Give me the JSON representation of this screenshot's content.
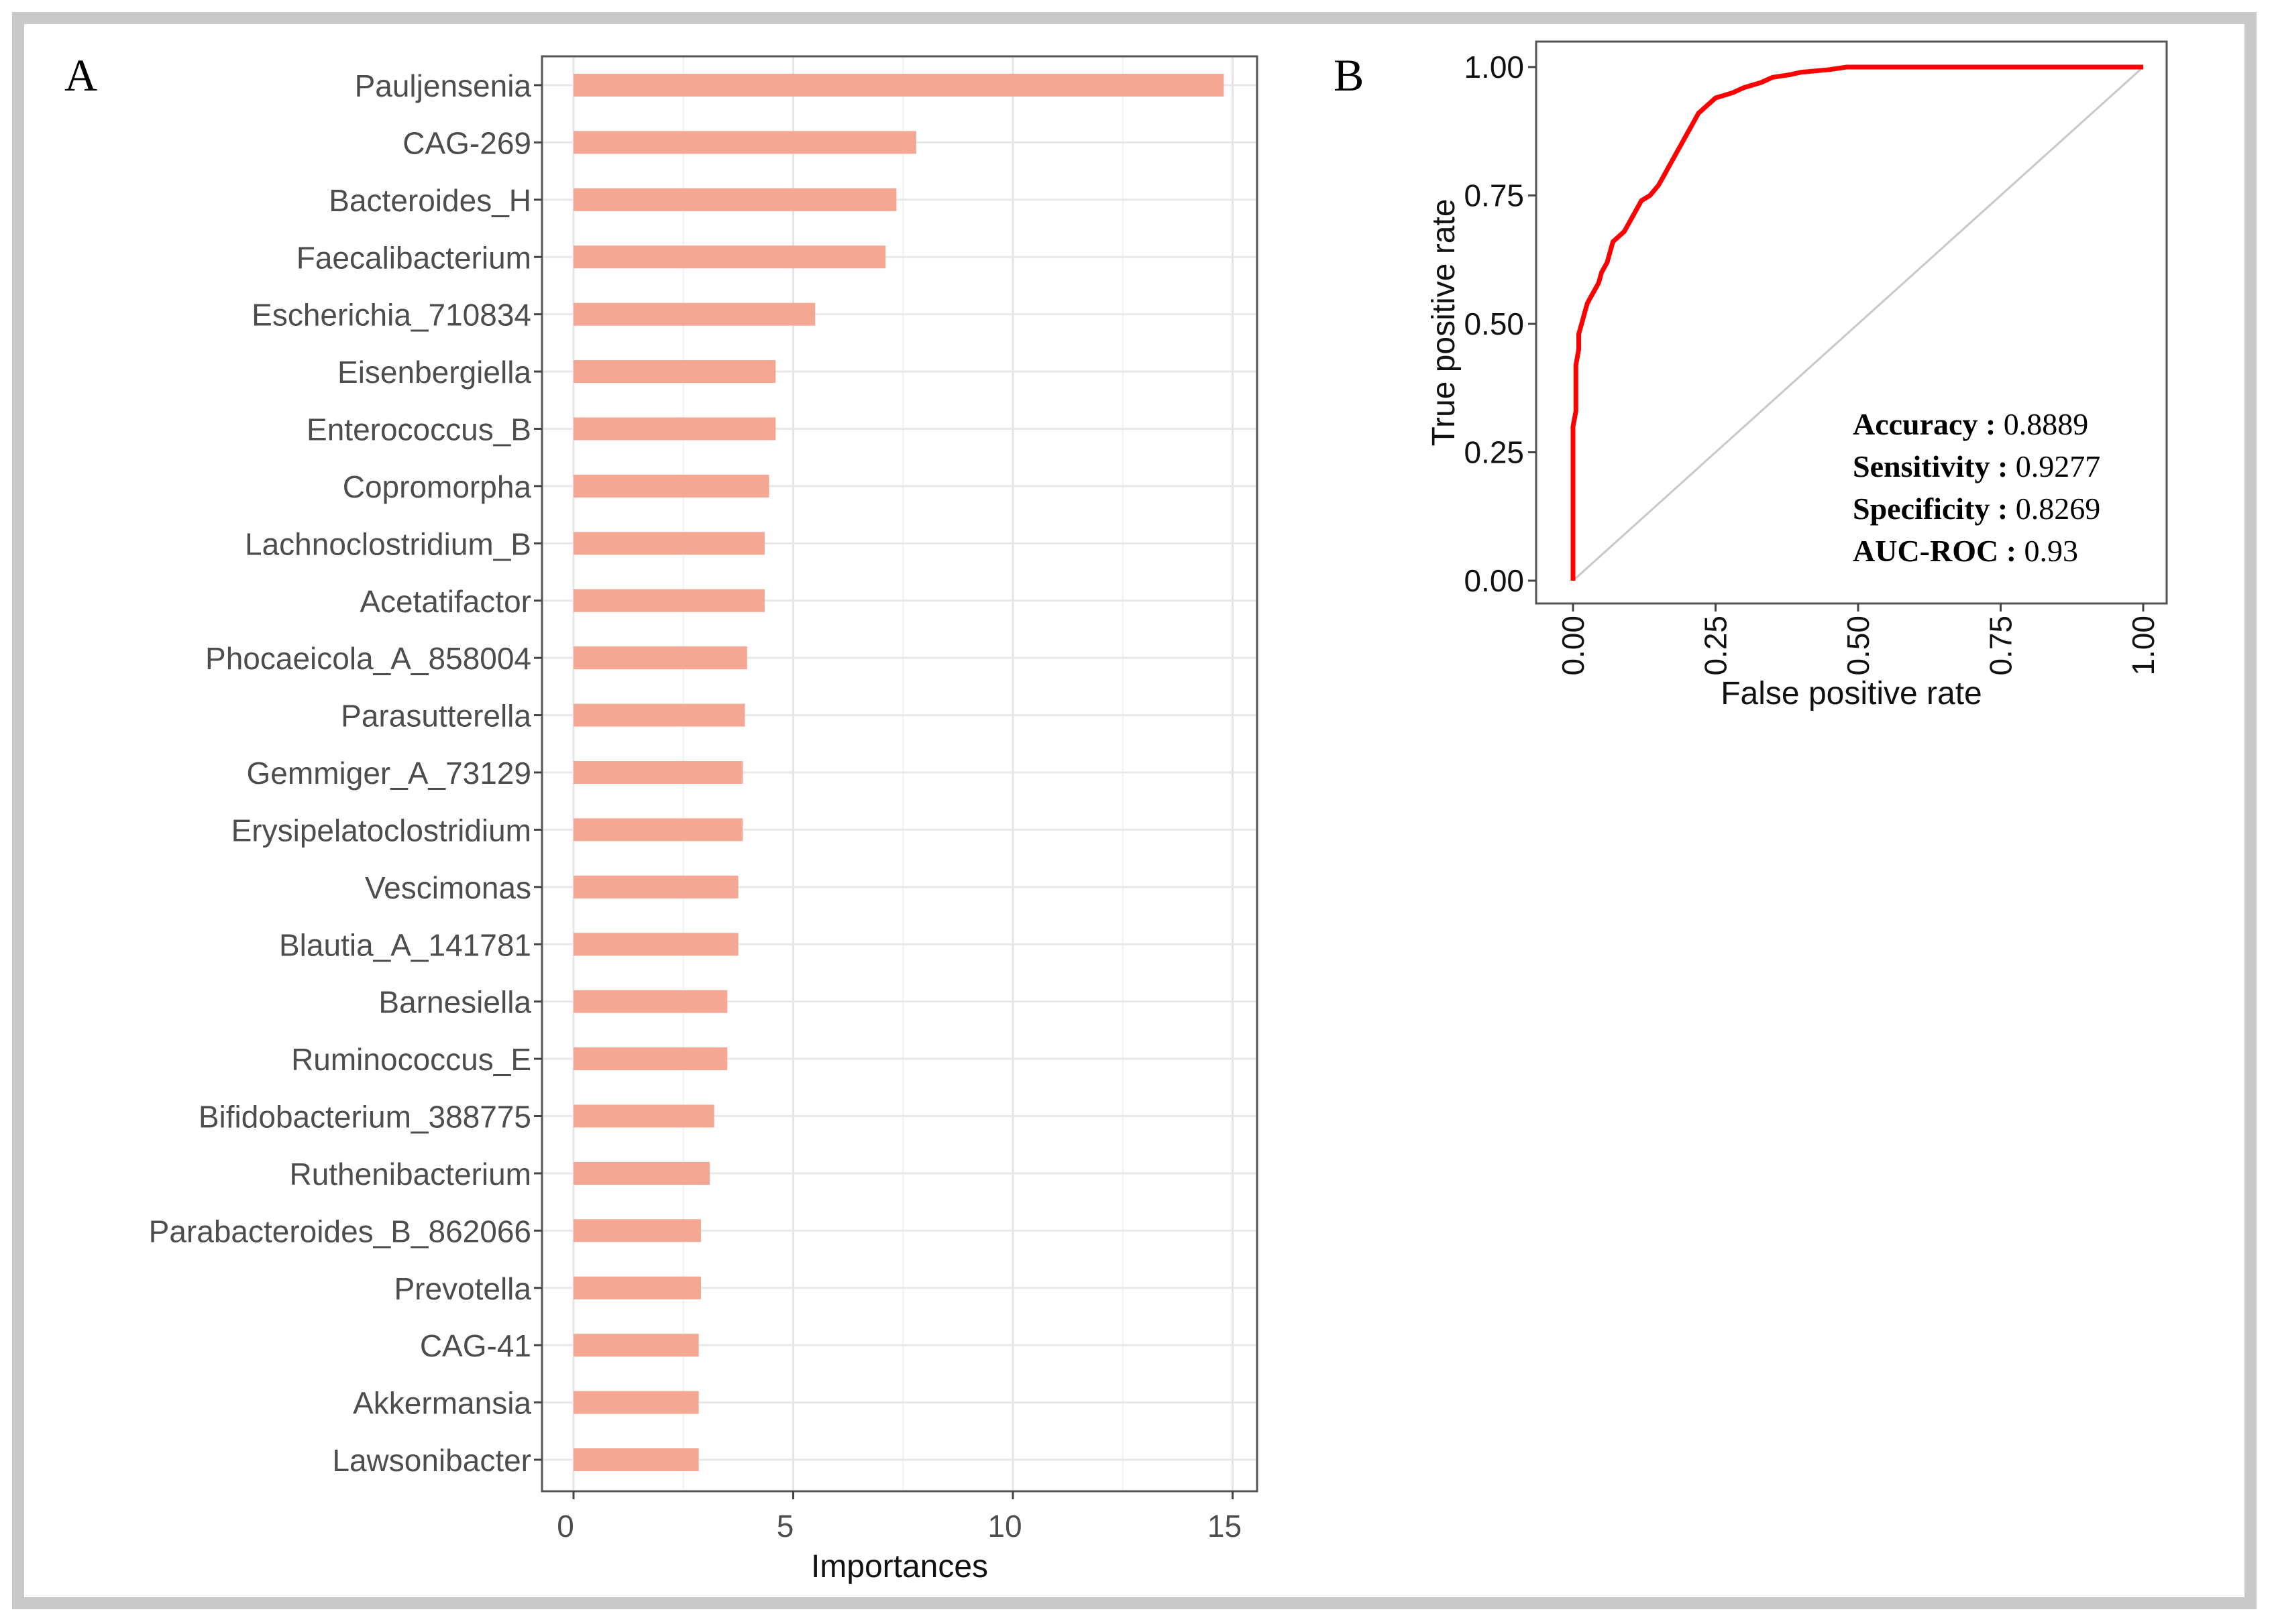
{
  "figure": {
    "panel_a_label": "A",
    "panel_b_label": "B"
  },
  "chart_data": [
    {
      "type": "bar",
      "orientation": "horizontal",
      "title": "",
      "xlabel": "Importances",
      "ylabel": "",
      "xlim": [
        0,
        15.5
      ],
      "xticks": [
        0,
        5,
        10,
        15
      ],
      "grid": true,
      "bar_color": "#f4a792",
      "categories": [
        "Pauljensenia",
        "CAG-269",
        "Bacteroides_H",
        "Faecalibacterium",
        "Escherichia_710834",
        "Eisenbergiella",
        "Enterococcus_B",
        "Copromorpha",
        "Lachnoclostridium_B",
        "Acetatifactor",
        "Phocaeicola_A_858004",
        "Parasutterella",
        "Gemmiger_A_73129",
        "Erysipelatoclostridium",
        "Vescimonas",
        "Blautia_A_141781",
        "Barnesiella",
        "Ruminococcus_E",
        "Bifidobacterium_388775",
        "Ruthenibacterium",
        "Parabacteroides_B_862066",
        "Prevotella",
        "CAG-41",
        "Akkermansia",
        "Lawsonibacter"
      ],
      "values": [
        14.8,
        7.8,
        7.35,
        7.1,
        5.5,
        4.6,
        4.6,
        4.45,
        4.35,
        4.35,
        3.95,
        3.9,
        3.85,
        3.85,
        3.75,
        3.75,
        3.5,
        3.5,
        3.2,
        3.1,
        2.9,
        2.9,
        2.85,
        2.85,
        2.85
      ]
    },
    {
      "type": "line",
      "title": "",
      "xlabel": "False positive rate",
      "ylabel": "True positive rate",
      "xlim": [
        0,
        1
      ],
      "ylim": [
        0,
        1
      ],
      "xticks": [
        "0.00",
        "0.25",
        "0.50",
        "0.75",
        "1.00"
      ],
      "yticks": [
        "0.00",
        "0.25",
        "0.50",
        "0.75",
        "1.00"
      ],
      "grid": false,
      "series": [
        {
          "name": "ROC",
          "color": "#ff0000",
          "x": [
            0,
            0,
            0.005,
            0.005,
            0.01,
            0.01,
            0.015,
            0.02,
            0.025,
            0.03,
            0.035,
            0.045,
            0.05,
            0.06,
            0.07,
            0.08,
            0.09,
            0.1,
            0.11,
            0.12,
            0.135,
            0.15,
            0.16,
            0.17,
            0.18,
            0.19,
            0.2,
            0.21,
            0.22,
            0.24,
            0.25,
            0.28,
            0.3,
            0.33,
            0.35,
            0.38,
            0.4,
            0.45,
            0.48,
            0.5,
            0.6,
            0.7,
            0.8,
            0.9,
            1.0
          ],
          "y": [
            0,
            0.3,
            0.33,
            0.42,
            0.45,
            0.48,
            0.5,
            0.52,
            0.54,
            0.55,
            0.56,
            0.58,
            0.6,
            0.62,
            0.66,
            0.67,
            0.68,
            0.7,
            0.72,
            0.74,
            0.75,
            0.77,
            0.79,
            0.81,
            0.83,
            0.85,
            0.87,
            0.89,
            0.91,
            0.93,
            0.94,
            0.95,
            0.96,
            0.97,
            0.98,
            0.985,
            0.99,
            0.995,
            1.0,
            1.0,
            1.0,
            1.0,
            1.0,
            1.0,
            1.0
          ]
        },
        {
          "name": "chance",
          "color": "#c8c8c8",
          "x": [
            0,
            1
          ],
          "y": [
            0,
            1
          ]
        }
      ],
      "annotations": [
        {
          "label": "Accuracy :",
          "value": "0.8889"
        },
        {
          "label": "Sensitivity :",
          "value": "0.9277"
        },
        {
          "label": "Specificity :",
          "value": "0.8269"
        },
        {
          "label": "AUC-ROC :",
          "value": "0.93"
        }
      ]
    }
  ]
}
